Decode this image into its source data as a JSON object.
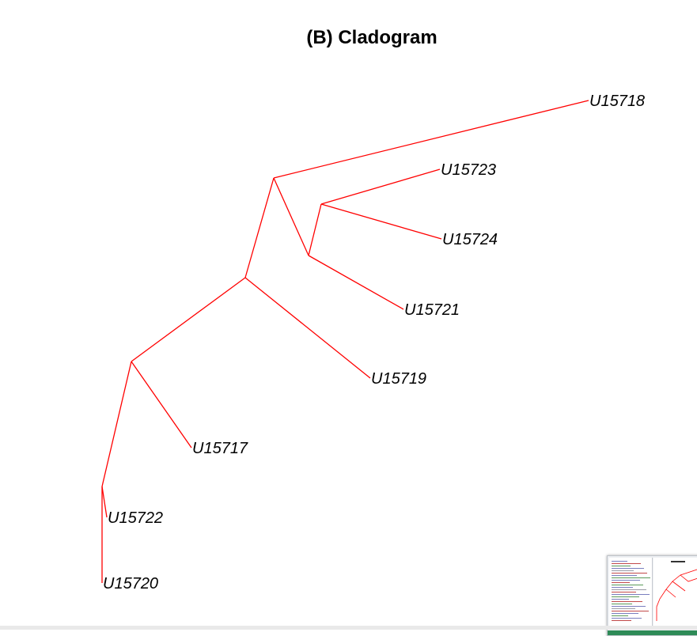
{
  "title": "(B) Cladogram",
  "colors": {
    "edge": "#ff0000",
    "label": "#000000",
    "background": "#ffffff"
  },
  "tree": {
    "tips": [
      {
        "id": "U15718",
        "label": "U15718"
      },
      {
        "id": "U15723",
        "label": "U15723"
      },
      {
        "id": "U15724",
        "label": "U15724"
      },
      {
        "id": "U15721",
        "label": "U15721"
      },
      {
        "id": "U15719",
        "label": "U15719"
      },
      {
        "id": "U15717",
        "label": "U15717"
      },
      {
        "id": "U15722",
        "label": "U15722"
      },
      {
        "id": "U15720",
        "label": "U15720"
      }
    ]
  },
  "thumbnail": {
    "icon": "window-preview-icon"
  }
}
